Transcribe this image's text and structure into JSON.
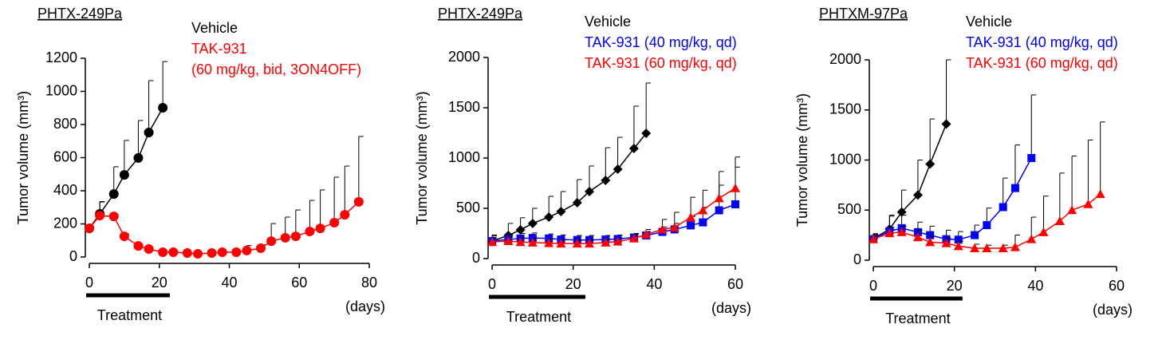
{
  "chart_data": [
    {
      "type": "line",
      "title": "PHTX-249Pa",
      "y_label": "Tumor volume (mm³)",
      "x_label": "(days)",
      "xlim": [
        0,
        80
      ],
      "xticks": [
        0,
        20,
        40,
        60,
        80
      ],
      "ylim": [
        0,
        1200
      ],
      "yticks": [
        0,
        200,
        400,
        600,
        800,
        1000,
        1200
      ],
      "treatment": {
        "label": "Treatment",
        "start": 0,
        "end": 23
      },
      "series": [
        {
          "name": "Vehicle",
          "color": "#000000",
          "marker": "circle",
          "x": [
            0,
            3,
            7,
            10,
            14,
            17,
            21
          ],
          "values": [
            173,
            260,
            380,
            496,
            598,
            752,
            901
          ],
          "errors": [
            10,
            72,
            165,
            208,
            226,
            313,
            279
          ]
        },
        {
          "name": "TAK-931\n(60 mg/kg, bid, 3ON4OFF)",
          "color": "#ff0000",
          "marker": "circle",
          "x": [
            0,
            3,
            7,
            10,
            14,
            17,
            21,
            24,
            28,
            31,
            35,
            38,
            42,
            45,
            49,
            52,
            56,
            59,
            63,
            66,
            70,
            73,
            77
          ],
          "values": [
            173,
            250,
            245,
            125,
            67,
            48,
            29,
            29,
            24,
            19,
            24,
            29,
            29,
            39,
            53,
            96,
            116,
            125,
            154,
            173,
            207,
            255,
            333
          ],
          "errors": [
            0,
            85,
            10,
            15,
            10,
            8,
            6,
            5,
            5,
            5,
            5,
            5,
            8,
            30,
            20,
            106,
            125,
            159,
            188,
            232,
            275,
            294,
            395
          ]
        }
      ]
    },
    {
      "type": "line",
      "title": "PHTX-249Pa",
      "y_label": "Tumor volume (mm³)",
      "x_label": "(days)",
      "xlim": [
        0,
        60
      ],
      "xticks": [
        0,
        20,
        40,
        60
      ],
      "ylim": [
        0,
        2000
      ],
      "yticks": [
        0,
        500,
        1000,
        1500,
        2000
      ],
      "treatment": {
        "label": "Treatment",
        "start": 0,
        "end": 23
      },
      "series": [
        {
          "name": "Vehicle",
          "color": "#000000",
          "marker": "diamond",
          "x": [
            0,
            4,
            7,
            10,
            14,
            17,
            21,
            24,
            28,
            31,
            35,
            38
          ],
          "values": [
            175,
            230,
            286,
            350,
            413,
            468,
            556,
            667,
            778,
            889,
            1095,
            1246
          ],
          "errors": [
            60,
            120,
            120,
            150,
            206,
            199,
            230,
            254,
            325,
            317,
            421,
            500
          ]
        },
        {
          "name": "TAK-931 (40 mg/kg, qd)",
          "color": "#0000ff",
          "marker": "square",
          "x": [
            0,
            4,
            7,
            10,
            14,
            17,
            21,
            24,
            28,
            31,
            35,
            38,
            42,
            45,
            49,
            52,
            56,
            60
          ],
          "values": [
            175,
            190,
            200,
            205,
            200,
            190,
            185,
            185,
            190,
            195,
            210,
            230,
            265,
            290,
            330,
            360,
            480,
            540
          ],
          "errors": [
            50,
            50,
            50,
            50,
            45,
            45,
            45,
            45,
            40,
            40,
            40,
            40,
            50,
            60,
            90,
            150,
            250,
            370
          ]
        },
        {
          "name": "TAK-931 (60 mg/kg, qd)",
          "color": "#ff0000",
          "marker": "triangle",
          "x": [
            0,
            4,
            7,
            10,
            14,
            17,
            21,
            24,
            28,
            31,
            35,
            38,
            42,
            45,
            49,
            52,
            56,
            60
          ],
          "values": [
            165,
            175,
            165,
            160,
            155,
            150,
            150,
            150,
            160,
            170,
            200,
            240,
            290,
            310,
            410,
            480,
            600,
            700
          ],
          "errors": [
            40,
            40,
            40,
            40,
            40,
            35,
            35,
            35,
            35,
            35,
            40,
            50,
            100,
            150,
            200,
            200,
            266,
            310
          ]
        }
      ]
    },
    {
      "type": "line",
      "title": "PHTXM-97Pa",
      "y_label": "Tumor volume (mm³)",
      "x_label": "(days)",
      "xlim": [
        0,
        60
      ],
      "xticks": [
        0,
        20,
        40,
        60
      ],
      "ylim": [
        0,
        2000
      ],
      "yticks": [
        0,
        500,
        1000,
        1500,
        2000
      ],
      "treatment": {
        "label": "Treatment",
        "start": 0,
        "end": 22
      },
      "series": [
        {
          "name": "Vehicle",
          "color": "#000000",
          "marker": "diamond",
          "x": [
            0,
            4,
            7,
            11,
            14,
            18
          ],
          "values": [
            215,
            310,
            480,
            650,
            960,
            1360
          ],
          "errors": [
            50,
            140,
            220,
            350,
            450,
            640
          ]
        },
        {
          "name": "TAK-931 (40 mg/kg, qd)",
          "color": "#0000ff",
          "marker": "square",
          "x": [
            0,
            4,
            7,
            11,
            14,
            18,
            21,
            25,
            28,
            32,
            35,
            39
          ],
          "values": [
            210,
            290,
            320,
            280,
            250,
            210,
            205,
            250,
            350,
            530,
            720,
            1020
          ],
          "errors": [
            50,
            150,
            130,
            100,
            90,
            90,
            80,
            100,
            170,
            290,
            430,
            630
          ]
        },
        {
          "name": "TAK-931 (60 mg/kg, qd)",
          "color": "#ff0000",
          "marker": "triangle",
          "x": [
            0,
            4,
            7,
            11,
            14,
            18,
            21,
            25,
            28,
            32,
            35,
            39,
            42,
            46,
            49,
            53,
            56
          ],
          "values": [
            210,
            270,
            280,
            230,
            180,
            170,
            140,
            120,
            120,
            120,
            130,
            210,
            280,
            390,
            500,
            560,
            660
          ],
          "errors": [
            40,
            60,
            60,
            70,
            60,
            50,
            50,
            40,
            30,
            30,
            120,
            220,
            360,
            480,
            540,
            640,
            720
          ]
        }
      ]
    }
  ]
}
